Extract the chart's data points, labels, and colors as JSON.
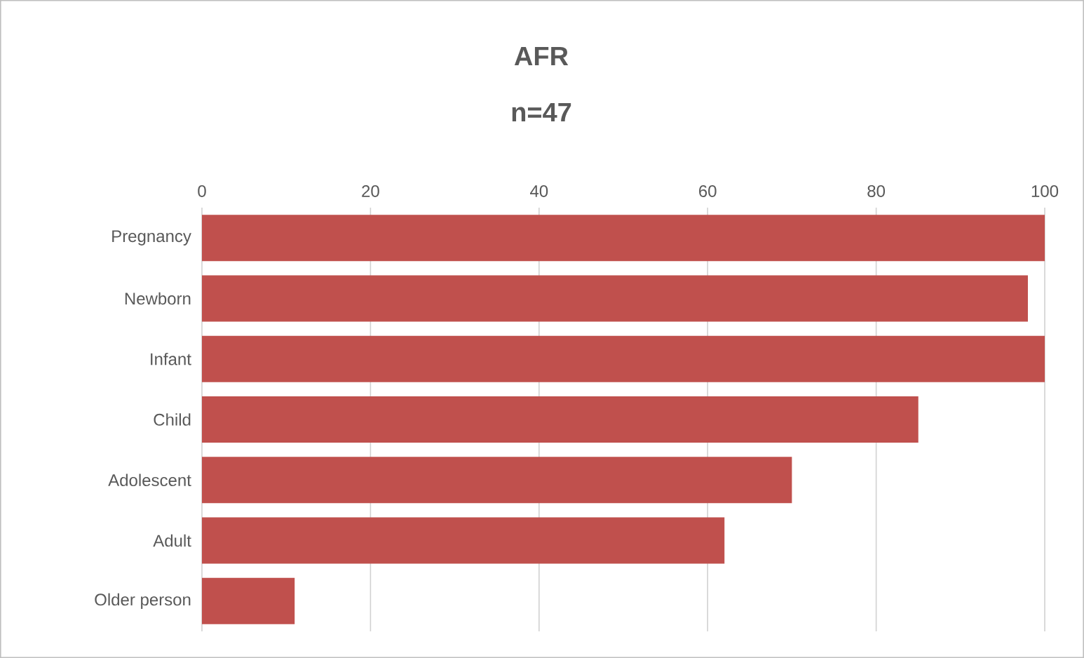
{
  "chart_data": {
    "type": "bar",
    "orientation": "horizontal",
    "title": "AFR",
    "subtitle": "n=47",
    "categories": [
      "Pregnancy",
      "Newborn",
      "Infant",
      "Child",
      "Adolescent",
      "Adult",
      "Older person"
    ],
    "values": [
      100,
      98,
      100,
      85,
      70,
      62,
      11
    ],
    "color": "#c0504d",
    "xlim": [
      0,
      100
    ],
    "xticks": [
      0,
      20,
      40,
      60,
      80,
      100
    ],
    "grid": "x"
  }
}
